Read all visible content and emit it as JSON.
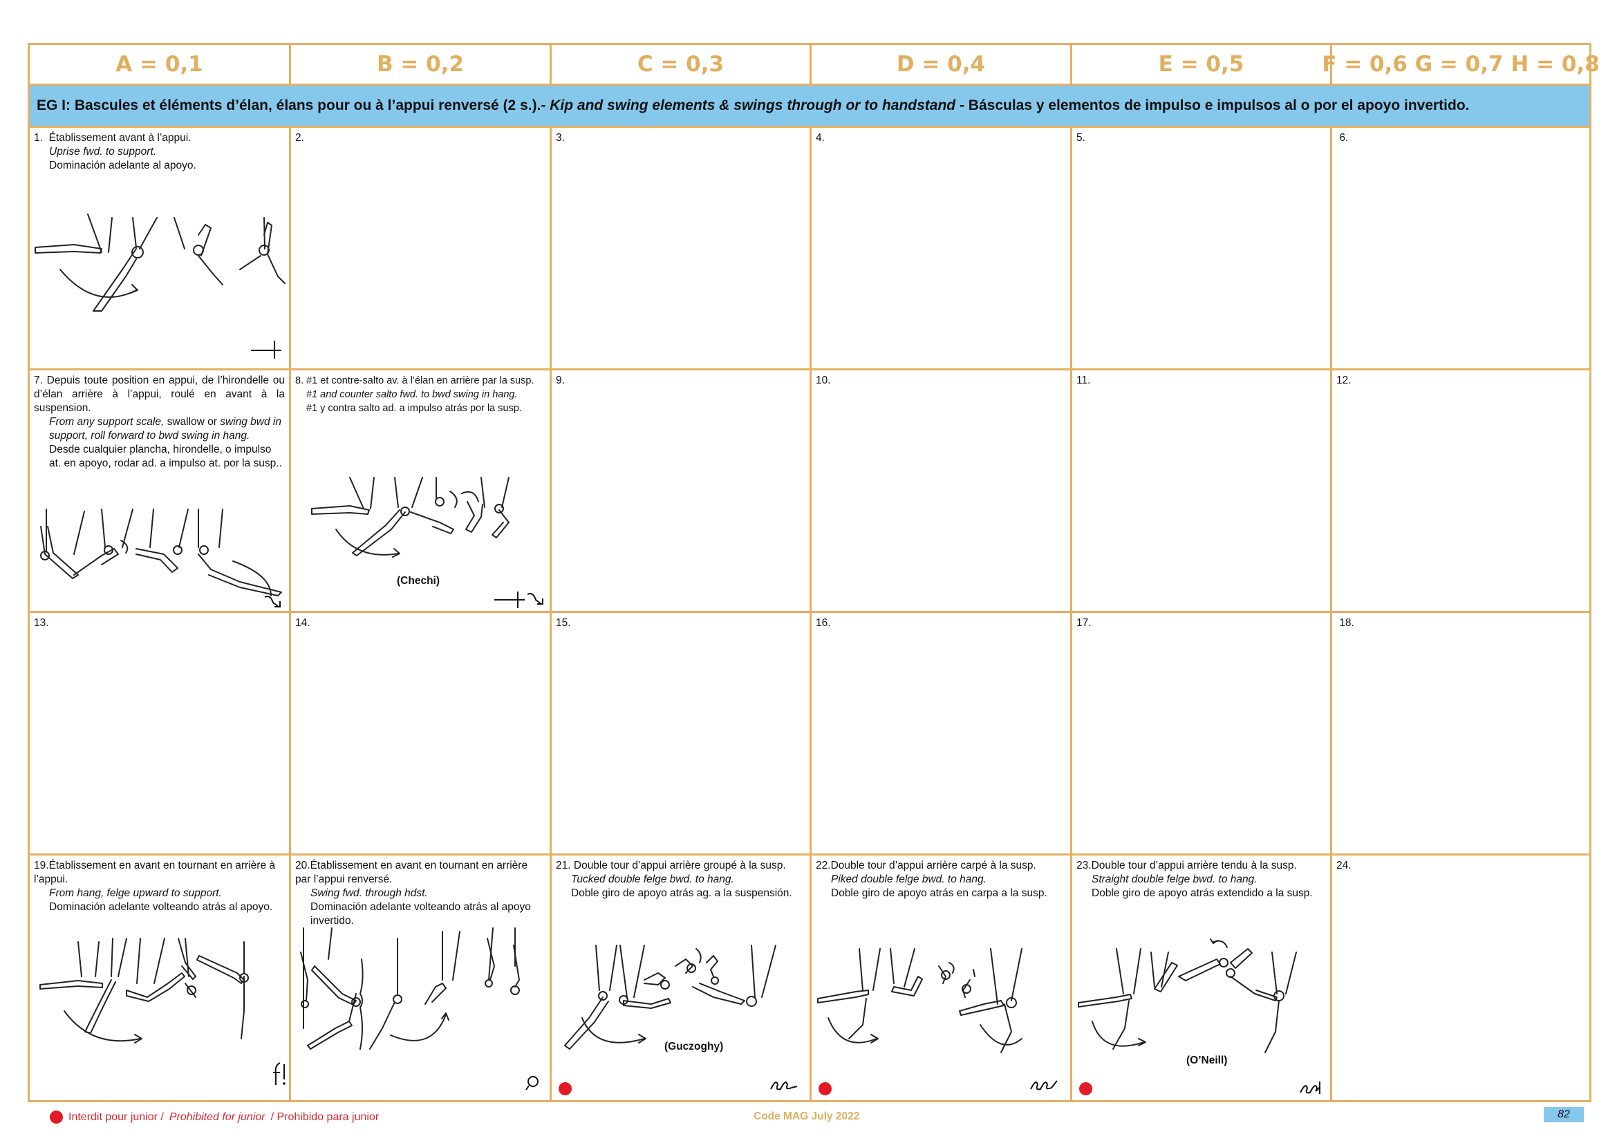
{
  "header": {
    "values": [
      "A = 0,1",
      "B = 0,2",
      "C = 0,3",
      "D = 0,4",
      "E = 0,5",
      "F = 0,6 G = 0,7 H = 0,8"
    ]
  },
  "group": {
    "prefix": "EG I:  Bascules et éléments d’élan, élans pour ou à l’appui renversé (2 s.).-",
    "english": "Kip and swing elements & swings through or to handstand",
    "spanish": "- Básculas y elementos de impulso e impulsos al o por el apoyo invertido."
  },
  "cells": {
    "c1": {
      "num": "1.",
      "fr": "Établissement avant à l’appui.",
      "en": "Uprise fwd. to support.",
      "es": "Dominación adelante al apoyo."
    },
    "c2": {
      "num": "2."
    },
    "c3": {
      "num": "3."
    },
    "c4": {
      "num": "4."
    },
    "c5": {
      "num": "5."
    },
    "c6": {
      "num": "6."
    },
    "c7": {
      "num": "7.",
      "fr": "Depuis toute position en appui, de l’hirondelle ou d’élan arrière à l’appui, roulé en avant à la suspension.",
      "en1": "From any support scale,",
      "en_plain": " swallow or ",
      "en2": "swing bwd in support, roll forward to bwd swing in hang.",
      "es": "Desde cualquier plancha, hirondelle, o impulso at. en apoyo, rodar ad. a impulso at. por la susp.."
    },
    "c8": {
      "num": "8.",
      "fr": "#1 et contre-salto av. à l’élan en arrière par la susp.",
      "en": "#1 and counter salto fwd. to bwd swing in hang.",
      "es": "#1 y contra salto ad. a impulso atrás por la susp.",
      "name": "(Chechi)"
    },
    "c9": {
      "num": "9."
    },
    "c10": {
      "num": "10."
    },
    "c11": {
      "num": "11."
    },
    "c12": {
      "num": "12."
    },
    "c13": {
      "num": "13."
    },
    "c14": {
      "num": "14."
    },
    "c15": {
      "num": "15."
    },
    "c16": {
      "num": "16."
    },
    "c17": {
      "num": "17."
    },
    "c18": {
      "num": "18."
    },
    "c19": {
      "num": "19.",
      "fr": "Établissement en avant en tournant en arrière à l’appui.",
      "en": "From hang, felge upward to support.",
      "es": "Dominación adelante volteando atrás al apoyo."
    },
    "c20": {
      "num": "20.",
      "fr": "Établissement en avant en tournant en arrière par l’appui renversé.",
      "en": "Swing fwd. through hdst.",
      "es": "Dominación adelante volteando atrás al apoyo invertido."
    },
    "c21": {
      "num": "21.",
      "fr": "Double tour d’appui arrière groupé à la susp.",
      "en": "Tucked double felge bwd. to hang.",
      "es": "Doble giro de apoyo atrás ag. a la suspensión.",
      "name": "(Guczoghy)"
    },
    "c22": {
      "num": "22.",
      "fr": "Double tour d’appui arrière carpé à la susp.",
      "en": "Piked double felge bwd. to hang.",
      "es": "Doble giro de apoyo atrás en carpa a la susp."
    },
    "c23": {
      "num": "23.",
      "fr": "Double tour d’appui arrière tendu à la susp.",
      "en": "Straight double felge bwd. to hang.",
      "es": "Doble giro de apoyo atrás extendido a la susp.",
      "name": "(O’Neill)"
    },
    "c24": {
      "num": "24."
    }
  },
  "footer": {
    "legend_fr": "Interdit pour junior /",
    "legend_en": "Prohibited for junior",
    "legend_es": "/ Prohibido para junior",
    "code": "Code MAG July 2022",
    "page": "82"
  },
  "colors": {
    "border": "#E3B062",
    "band": "#86C8EC",
    "prohibited": "#E21A23"
  },
  "icons": {
    "prohibited": "red-dot-icon",
    "marks": [
      "support-mark-icon",
      "kip-mark-icon",
      "swing-mark-icon",
      "double-felge-mark-icon"
    ]
  }
}
